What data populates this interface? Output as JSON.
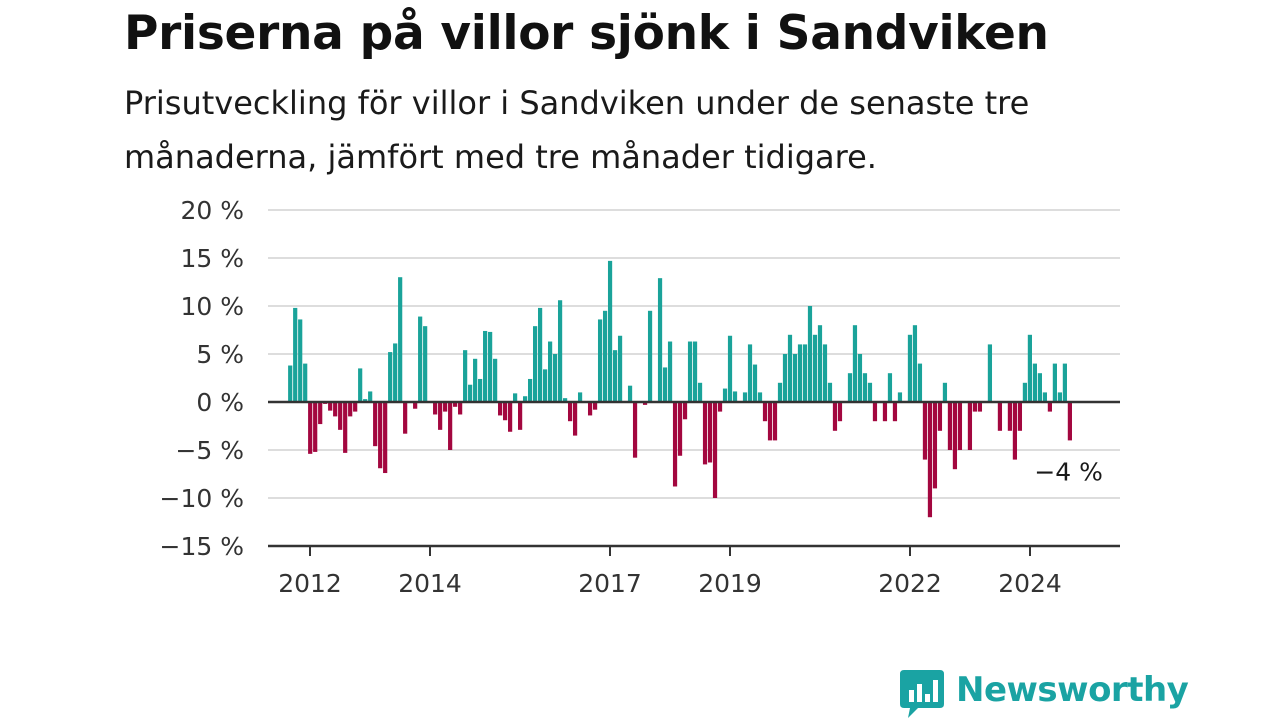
{
  "title": "Priserna på villor sjönk i Sandviken",
  "subtitle": "Prisutveckling för villor i Sandviken under de senaste tre månaderna, jämfört med tre månader tidigare.",
  "brand": {
    "name": "Newsworthy",
    "icon": "newsworthy-logo-icon"
  },
  "colors": {
    "positive": "#1aa39a",
    "negative": "#a3073f",
    "grid": "#dddddd",
    "axis": "#333333",
    "brand": "#1aa3a3"
  },
  "chart_data": {
    "type": "bar",
    "ylim": [
      -15,
      20
    ],
    "y_ticks": [
      20,
      15,
      10,
      5,
      0,
      -5,
      -10,
      -15
    ],
    "y_tick_labels": [
      "20 %",
      "15 %",
      "10 %",
      "5 %",
      "0 %",
      "−5 %",
      "−10 %",
      "−15 %"
    ],
    "x_ticks": [
      2012,
      2014,
      2017,
      2019,
      2022,
      2024
    ],
    "x_tick_labels": [
      "2012",
      "2014",
      "2017",
      "2019",
      "2022",
      "2024"
    ],
    "x_start": 2011.67,
    "x_step": 0.0833,
    "grid": true,
    "last_value_label": "−4 %",
    "values": [
      3.8,
      9.8,
      8.6,
      4.0,
      -5.4,
      -5.2,
      -2.3,
      -0.2,
      -0.9,
      -1.5,
      -2.9,
      -5.3,
      -1.5,
      -1.0,
      3.5,
      0.3,
      1.1,
      -4.6,
      -6.9,
      -7.4,
      5.2,
      6.1,
      13.0,
      -3.3,
      0.0,
      -0.7,
      8.9,
      7.9,
      0.1,
      -1.3,
      -2.9,
      -1.0,
      -5.0,
      -0.5,
      -1.3,
      5.4,
      1.8,
      4.5,
      2.4,
      7.4,
      7.3,
      4.5,
      -1.4,
      -1.9,
      -3.1,
      0.9,
      -2.9,
      0.6,
      2.4,
      7.9,
      9.8,
      3.4,
      6.3,
      5.0,
      10.6,
      0.4,
      -2.0,
      -3.5,
      1.0,
      0.0,
      -1.4,
      -0.8,
      8.6,
      9.5,
      14.7,
      5.4,
      6.9,
      0.1,
      1.7,
      -5.8,
      0.0,
      -0.3,
      9.5,
      0.0,
      12.9,
      3.6,
      6.3,
      -8.8,
      -5.6,
      -1.8,
      6.3,
      6.3,
      2.0,
      -6.5,
      -6.3,
      -10.0,
      -1.0,
      1.4,
      6.9,
      1.1,
      0.0,
      1.0,
      6.0,
      3.9,
      1.0,
      -2.0,
      -4.0,
      -4.0,
      2.0,
      5.0,
      7.0,
      5.0,
      6.0,
      6.0,
      10.0,
      7.0,
      8.0,
      6.0,
      2.0,
      -3.0,
      -2.0,
      0.0,
      3.0,
      8.0,
      5.0,
      3.0,
      2.0,
      -2.0,
      0.0,
      -2.0,
      3.0,
      -2.0,
      1.0,
      0.0,
      7.0,
      8.0,
      4.0,
      -6.0,
      -12.0,
      -9.0,
      -3.0,
      2.0,
      -5.0,
      -7.0,
      -5.0,
      0.0,
      -5.0,
      -1.0,
      -1.0,
      0.0,
      6.0,
      0.0,
      -3.0,
      0.0,
      -3.0,
      -6.0,
      -3.0,
      2.0,
      7.0,
      4.0,
      3.0,
      1.0,
      -1.0,
      4.0,
      1.0,
      4.0,
      -4.0
    ]
  }
}
